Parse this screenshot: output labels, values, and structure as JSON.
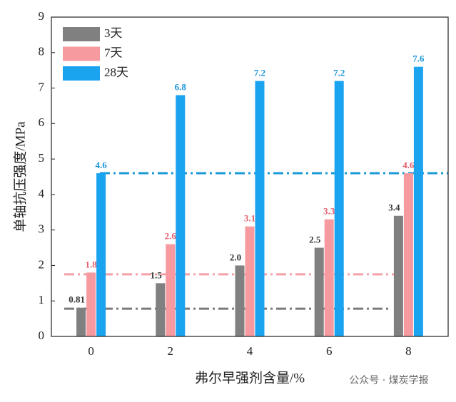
{
  "chart_data": {
    "type": "bar",
    "x_label": "弗尔早强剂含量/%",
    "y_label": "单轴抗压强度/MPa",
    "categories": [
      "0",
      "2",
      "4",
      "6",
      "8"
    ],
    "series": [
      {
        "name": "3天",
        "color": "#808080",
        "label_color": "#333333",
        "values": [
          0.81,
          1.5,
          2.0,
          2.5,
          3.4
        ],
        "value_labels": [
          "0.81",
          "1.5",
          "2.0",
          "2.5",
          "3.4"
        ]
      },
      {
        "name": "7天",
        "color": "#f79aa0",
        "label_color": "#e0606e",
        "values": [
          1.8,
          2.6,
          3.1,
          3.3,
          4.6
        ]
      },
      {
        "name": "28天",
        "color": "#1aa3ef",
        "label_color": "#1a96d8",
        "values": [
          4.6,
          6.8,
          7.2,
          7.2,
          7.6
        ]
      }
    ],
    "reference_lines": [
      {
        "value": 0.78,
        "color": "#7a7a7a"
      },
      {
        "value": 1.75,
        "color": "#f4a0a6"
      },
      {
        "value": 4.6,
        "color": "#1a9ad6"
      }
    ],
    "ylim": [
      0,
      9
    ],
    "yticks": [
      0,
      1,
      2,
      3,
      4,
      5,
      6,
      7,
      8,
      9
    ],
    "legend": "top-left",
    "watermark": "公众号 · 煤炭学报"
  }
}
